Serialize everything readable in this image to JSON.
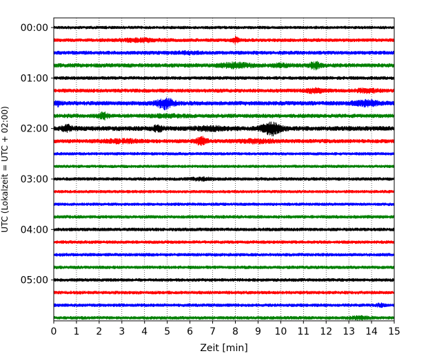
{
  "chart_data": {
    "type": "line",
    "title": "",
    "xlabel": "Zeit  [min]",
    "ylabel": "UTC (Lokalzeit = UTC + 02:00)",
    "xlim": [
      0,
      15
    ],
    "x_ticks": [
      0,
      1,
      2,
      3,
      4,
      5,
      6,
      7,
      8,
      9,
      10,
      11,
      12,
      13,
      14,
      15
    ],
    "x_tick_labels": [
      "0",
      "1",
      "2",
      "3",
      "4",
      "5",
      "6",
      "7",
      "8",
      "9",
      "10",
      "11",
      "12",
      "13",
      "14",
      "15"
    ],
    "y_tick_labels": [
      "00:00",
      "01:00",
      "02:00",
      "03:00",
      "04:00",
      "05:00"
    ],
    "y_tick_trace_index": [
      0,
      4,
      8,
      12,
      16,
      20
    ],
    "grid": {
      "vertical_dotted": true,
      "horizontal": false
    },
    "color_cycle": [
      "#000000",
      "#ff0000",
      "#0000ff",
      "#008000"
    ],
    "series": [
      {
        "start_utc": "00:00",
        "amplitude": 0.22,
        "bursts": []
      },
      {
        "start_utc": "00:15",
        "amplitude": 0.26,
        "bursts": [
          {
            "x": 3.8,
            "width": 1.8,
            "amp": 0.18
          },
          {
            "x": 8.0,
            "width": 0.3,
            "amp": 0.45
          }
        ]
      },
      {
        "start_utc": "00:30",
        "amplitude": 0.28,
        "bursts": [
          {
            "x": 6.0,
            "width": 1.0,
            "amp": 0.12
          }
        ]
      },
      {
        "start_utc": "00:45",
        "amplitude": 0.3,
        "bursts": [
          {
            "x": 8.0,
            "width": 1.5,
            "amp": 0.3
          },
          {
            "x": 11.5,
            "width": 0.5,
            "amp": 0.5
          },
          {
            "x": 10.0,
            "width": 1.0,
            "amp": 0.15
          }
        ]
      },
      {
        "start_utc": "01:00",
        "amplitude": 0.25,
        "bursts": []
      },
      {
        "start_utc": "01:15",
        "amplitude": 0.28,
        "bursts": [
          {
            "x": 11.5,
            "width": 1.0,
            "amp": 0.25
          },
          {
            "x": 13.8,
            "width": 1.0,
            "amp": 0.25
          }
        ]
      },
      {
        "start_utc": "01:30",
        "amplitude": 0.32,
        "bursts": [
          {
            "x": 0.2,
            "width": 0.3,
            "amp": 0.3
          },
          {
            "x": 4.9,
            "width": 0.8,
            "amp": 0.75
          },
          {
            "x": 13.8,
            "width": 1.2,
            "amp": 0.35
          }
        ]
      },
      {
        "start_utc": "01:45",
        "amplitude": 0.3,
        "bursts": [
          {
            "x": 2.2,
            "width": 0.4,
            "amp": 0.45
          },
          {
            "x": 5.0,
            "width": 1.5,
            "amp": 0.15
          }
        ]
      },
      {
        "start_utc": "02:00",
        "amplitude": 0.35,
        "bursts": [
          {
            "x": 0.6,
            "width": 0.5,
            "amp": 0.4
          },
          {
            "x": 4.6,
            "width": 0.4,
            "amp": 0.45
          },
          {
            "x": 9.6,
            "width": 0.9,
            "amp": 0.9
          },
          {
            "x": 7.0,
            "width": 1.5,
            "amp": 0.2
          }
        ]
      },
      {
        "start_utc": "02:15",
        "amplitude": 0.3,
        "bursts": [
          {
            "x": 3.0,
            "width": 1.5,
            "amp": 0.2
          },
          {
            "x": 6.5,
            "width": 0.5,
            "amp": 0.55
          },
          {
            "x": 9.0,
            "width": 1.5,
            "amp": 0.2
          }
        ]
      },
      {
        "start_utc": "02:30",
        "amplitude": 0.22,
        "bursts": []
      },
      {
        "start_utc": "02:45",
        "amplitude": 0.22,
        "bursts": []
      },
      {
        "start_utc": "03:00",
        "amplitude": 0.24,
        "bursts": [
          {
            "x": 6.5,
            "width": 1.0,
            "amp": 0.15
          }
        ]
      },
      {
        "start_utc": "03:15",
        "amplitude": 0.22,
        "bursts": []
      },
      {
        "start_utc": "03:30",
        "amplitude": 0.22,
        "bursts": []
      },
      {
        "start_utc": "03:45",
        "amplitude": 0.24,
        "bursts": []
      },
      {
        "start_utc": "04:00",
        "amplitude": 0.25,
        "bursts": []
      },
      {
        "start_utc": "04:15",
        "amplitude": 0.24,
        "bursts": []
      },
      {
        "start_utc": "04:30",
        "amplitude": 0.24,
        "bursts": []
      },
      {
        "start_utc": "04:45",
        "amplitude": 0.24,
        "bursts": []
      },
      {
        "start_utc": "05:00",
        "amplitude": 0.24,
        "bursts": []
      },
      {
        "start_utc": "05:15",
        "amplitude": 0.24,
        "bursts": []
      },
      {
        "start_utc": "05:30",
        "amplitude": 0.24,
        "bursts": [
          {
            "x": 14.4,
            "width": 0.3,
            "amp": 0.25
          }
        ]
      },
      {
        "start_utc": "05:45",
        "amplitude": 0.24,
        "bursts": [
          {
            "x": 13.5,
            "width": 1.0,
            "amp": 0.15
          }
        ]
      }
    ]
  }
}
